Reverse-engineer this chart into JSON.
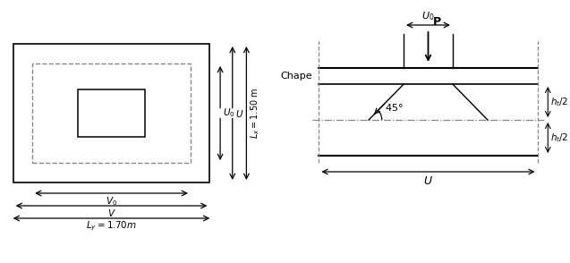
{
  "fig_width": 6.37,
  "fig_height": 2.94,
  "bg_color": "#ffffff",
  "lc": "#000000",
  "dc": "#888888"
}
